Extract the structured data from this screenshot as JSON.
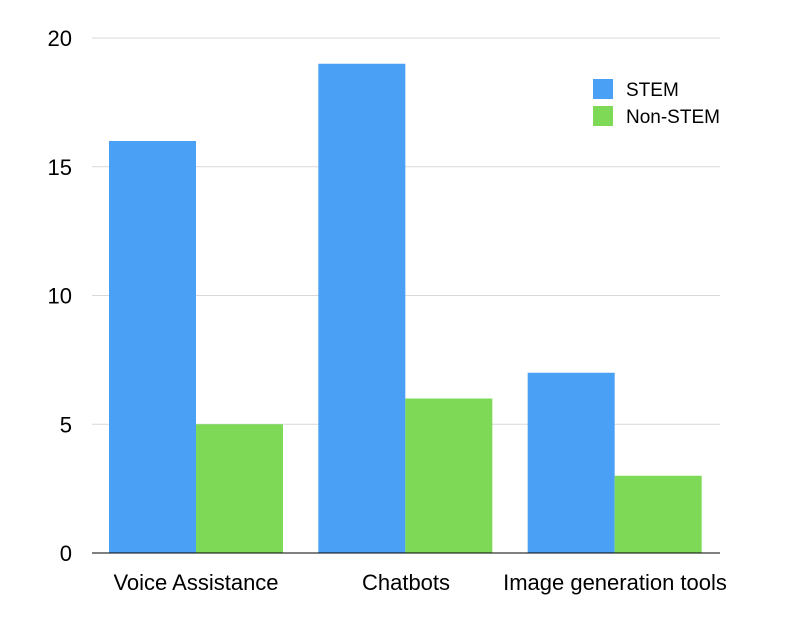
{
  "chart_data": {
    "type": "bar",
    "title": "",
    "xlabel": "",
    "ylabel": "",
    "categories": [
      "Voice Assistance",
      "Chatbots",
      "Image generation tools"
    ],
    "series": [
      {
        "name": "STEM",
        "values": [
          16,
          19,
          7
        ],
        "color": "#4aa0f5"
      },
      {
        "name": "Non-STEM",
        "values": [
          5,
          6,
          3
        ],
        "color": "#7ed957"
      }
    ],
    "ylim": [
      0,
      20
    ],
    "yticks": [
      "0",
      "5",
      "10",
      "15",
      "20"
    ],
    "grid": true,
    "legend_position": "top-right"
  }
}
